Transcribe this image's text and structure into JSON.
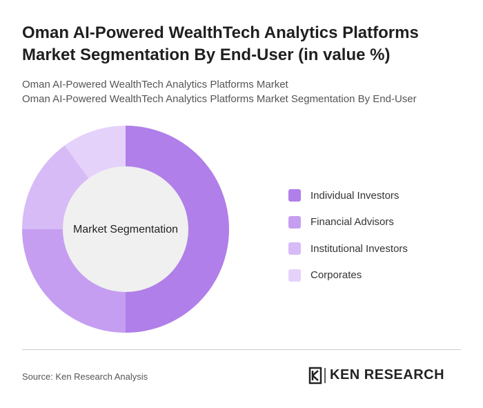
{
  "chart_data": {
    "type": "pie",
    "title": "Oman AI-Powered WealthTech Analytics Platforms Market Segmentation By End-User (in value %)",
    "subtitle": [
      "Oman AI-Powered WealthTech Analytics Platforms Market",
      "Oman AI-Powered WealthTech Analytics Platforms Market Segmentation By End-User"
    ],
    "center_label": "Market Segmentation",
    "categories": [
      "Individual Investors",
      "Financial Advisors",
      "Institutional Investors",
      "Corporates"
    ],
    "values": [
      50,
      25,
      15,
      10
    ],
    "colors": [
      "#b07fe9",
      "#c59ef1",
      "#d7bbf6",
      "#e5d2fa"
    ],
    "source": "Source: Ken Research Analysis",
    "logo": "KEN RESEARCH"
  }
}
